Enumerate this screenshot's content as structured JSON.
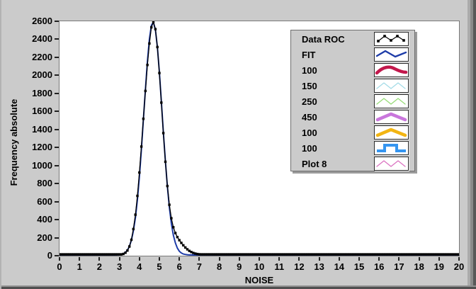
{
  "window": {
    "background": "#CBCBCB",
    "plot_background": "#FFFFFF",
    "plot_border": "#787878"
  },
  "chart_data": {
    "type": "line",
    "title": "",
    "xlabel": "NOISE",
    "ylabel": "Frequency absolute",
    "xlim": [
      0,
      20
    ],
    "ylim": [
      0,
      2600
    ],
    "grid": false,
    "legend_position": "top-right",
    "x_ticks": [
      0,
      1,
      2,
      3,
      4,
      5,
      6,
      7,
      8,
      9,
      10,
      11,
      12,
      13,
      14,
      15,
      16,
      17,
      18,
      19,
      20
    ],
    "y_ticks": [
      0,
      200,
      400,
      600,
      800,
      1000,
      1200,
      1400,
      1600,
      1800,
      2000,
      2200,
      2400,
      2600
    ],
    "sampling": {
      "x_start": 0,
      "x_end": 20,
      "x_step": 0.1,
      "default_value": 0
    },
    "series": [
      {
        "name": "Data ROC",
        "color": "#000000",
        "marker": "square",
        "line_width": 1.3,
        "points": [
          [
            2.8,
            1
          ],
          [
            2.9,
            2
          ],
          [
            3.0,
            3
          ],
          [
            3.1,
            6
          ],
          [
            3.2,
            12
          ],
          [
            3.3,
            25
          ],
          [
            3.4,
            50
          ],
          [
            3.5,
            95
          ],
          [
            3.6,
            170
          ],
          [
            3.7,
            290
          ],
          [
            3.8,
            450
          ],
          [
            3.9,
            660
          ],
          [
            4.0,
            920
          ],
          [
            4.1,
            1210
          ],
          [
            4.2,
            1520
          ],
          [
            4.3,
            1830
          ],
          [
            4.4,
            2120
          ],
          [
            4.5,
            2360
          ],
          [
            4.6,
            2540
          ],
          [
            4.7,
            2600
          ],
          [
            4.8,
            2520
          ],
          [
            4.9,
            2320
          ],
          [
            5.0,
            2030
          ],
          [
            5.1,
            1700
          ],
          [
            5.2,
            1360
          ],
          [
            5.3,
            1040
          ],
          [
            5.4,
            770
          ],
          [
            5.5,
            560
          ],
          [
            5.6,
            410
          ],
          [
            5.7,
            310
          ],
          [
            5.8,
            245
          ],
          [
            5.9,
            200
          ],
          [
            6.0,
            165
          ],
          [
            6.1,
            135
          ],
          [
            6.2,
            108
          ],
          [
            6.3,
            84
          ],
          [
            6.4,
            63
          ],
          [
            6.5,
            46
          ],
          [
            6.6,
            33
          ],
          [
            6.7,
            23
          ],
          [
            6.8,
            16
          ],
          [
            6.9,
            11
          ],
          [
            7.0,
            8
          ],
          [
            7.1,
            5
          ],
          [
            7.2,
            4
          ],
          [
            7.3,
            3
          ],
          [
            7.4,
            2
          ],
          [
            7.5,
            1
          ],
          [
            7.6,
            1
          ]
        ]
      },
      {
        "name": "FIT",
        "color": "#1E3CA8",
        "marker": null,
        "line_width": 2,
        "points": [
          [
            2.9,
            1
          ],
          [
            3.0,
            3
          ],
          [
            3.1,
            7
          ],
          [
            3.2,
            15
          ],
          [
            3.3,
            29
          ],
          [
            3.4,
            54
          ],
          [
            3.5,
            97
          ],
          [
            3.6,
            165
          ],
          [
            3.7,
            269
          ],
          [
            3.8,
            417
          ],
          [
            3.9,
            617
          ],
          [
            4.0,
            872
          ],
          [
            4.1,
            1174
          ],
          [
            4.2,
            1509
          ],
          [
            4.3,
            1848
          ],
          [
            4.4,
            2160
          ],
          [
            4.5,
            2408
          ],
          [
            4.6,
            2561
          ],
          [
            4.7,
            2598
          ],
          [
            4.8,
            2513
          ],
          [
            4.9,
            2319
          ],
          [
            5.0,
            2041
          ],
          [
            5.1,
            1713
          ],
          [
            5.2,
            1372
          ],
          [
            5.3,
            1048
          ],
          [
            5.4,
            764
          ],
          [
            5.5,
            531
          ],
          [
            5.6,
            352
          ],
          [
            5.7,
            222
          ],
          [
            5.8,
            134
          ],
          [
            5.9,
            77
          ],
          [
            6.0,
            42
          ],
          [
            6.1,
            22
          ],
          [
            6.2,
            11
          ],
          [
            6.3,
            6
          ],
          [
            6.4,
            3
          ],
          [
            6.5,
            1
          ],
          [
            6.6,
            1
          ],
          [
            6.7,
            0
          ]
        ]
      }
    ]
  },
  "legend": {
    "items": [
      {
        "label": "Data ROC",
        "style": "marker-zigzag",
        "color": "#000000",
        "width": 1.2
      },
      {
        "label": "FIT",
        "style": "zigzag2",
        "color": "#1E3CA8",
        "width": 2.4
      },
      {
        "label": "100",
        "style": "hump",
        "color": "#C2184C",
        "width": 4.5
      },
      {
        "label": "150",
        "style": "w-zigzag",
        "color": "#A5DCE8",
        "width": 1.3
      },
      {
        "label": "250",
        "style": "w-zigzag",
        "color": "#97DC78",
        "width": 1.3
      },
      {
        "label": "450",
        "style": "chevron",
        "color": "#C976DC",
        "width": 4.5
      },
      {
        "label": "100",
        "style": "chevron",
        "color": "#F2B513",
        "width": 4.5
      },
      {
        "label": "100",
        "style": "pulse",
        "color": "#3595F0",
        "width": 4
      },
      {
        "label": "Plot 8",
        "style": "w-zigzag",
        "color": "#DC73C2",
        "width": 1.3
      }
    ]
  }
}
